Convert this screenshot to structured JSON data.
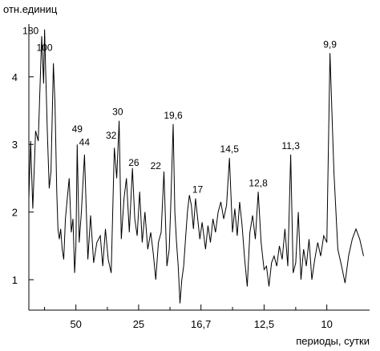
{
  "chart_data": {
    "type": "line",
    "ylabel": "отн.единиц",
    "xlabel": "периоды, сутки",
    "x_scale": "reciprocal",
    "xlim": [
      200,
      8.8
    ],
    "ylim": [
      0.55,
      4.78
    ],
    "grid": false,
    "series_color": "#000000",
    "y_ticks": [
      {
        "value": 1,
        "label": "1"
      },
      {
        "value": 2,
        "label": "2"
      },
      {
        "value": 3,
        "label": "3"
      },
      {
        "value": 4,
        "label": "4"
      }
    ],
    "x_ticks": [
      {
        "value": 50,
        "label": "50"
      },
      {
        "value": 25,
        "label": "25"
      },
      {
        "value": 16.7,
        "label": "16,7"
      },
      {
        "value": 12.5,
        "label": "12,5"
      },
      {
        "value": 10,
        "label": "10"
      }
    ],
    "x_minor_ticks": [
      100,
      33.3,
      20,
      14.3,
      11.1
    ],
    "peak_labels": [
      {
        "period": 180,
        "y": 4.55,
        "label": "180"
      },
      {
        "period": 100,
        "y": 4.3,
        "label": "100"
      },
      {
        "period": 49,
        "y": 3.1,
        "label": "49"
      },
      {
        "period": 44,
        "y": 2.9,
        "label": "44"
      },
      {
        "period": 32,
        "y": 3.0,
        "label": "32"
      },
      {
        "period": 30,
        "y": 3.35,
        "label": "30"
      },
      {
        "period": 26,
        "y": 2.6,
        "label": "26"
      },
      {
        "period": 22,
        "y": 2.55,
        "label": "22"
      },
      {
        "period": 19.6,
        "y": 3.3,
        "label": "19,6"
      },
      {
        "period": 17,
        "y": 2.2,
        "label": "17"
      },
      {
        "period": 14.5,
        "y": 2.8,
        "label": "14,5"
      },
      {
        "period": 12.8,
        "y": 2.3,
        "label": "12,8"
      },
      {
        "period": 11.3,
        "y": 2.85,
        "label": "11,3"
      },
      {
        "period": 9.9,
        "y": 4.35,
        "label": "9,9"
      }
    ],
    "series": [
      {
        "name": "",
        "points": [
          [
            200,
            2.2
          ],
          [
            180,
            3.05
          ],
          [
            160,
            2.05
          ],
          [
            140,
            3.2
          ],
          [
            125,
            3.05
          ],
          [
            110,
            4.6
          ],
          [
            103,
            3.9
          ],
          [
            100,
            4.7
          ],
          [
            92,
            3.2
          ],
          [
            87,
            2.35
          ],
          [
            83,
            2.6
          ],
          [
            78,
            4.2
          ],
          [
            75,
            3.6
          ],
          [
            72,
            2.3
          ],
          [
            70,
            1.75
          ],
          [
            68,
            1.6
          ],
          [
            66,
            1.75
          ],
          [
            64,
            1.45
          ],
          [
            62,
            1.3
          ],
          [
            60,
            1.9
          ],
          [
            58,
            2.2
          ],
          [
            56,
            2.5
          ],
          [
            54,
            1.7
          ],
          [
            52.5,
            1.9
          ],
          [
            51,
            1.1
          ],
          [
            50,
            1.5
          ],
          [
            49,
            3.0
          ],
          [
            47.5,
            1.55
          ],
          [
            46,
            2.0
          ],
          [
            44,
            2.85
          ],
          [
            42,
            1.3
          ],
          [
            40.5,
            1.95
          ],
          [
            39,
            1.25
          ],
          [
            37.5,
            1.55
          ],
          [
            36,
            1.65
          ],
          [
            35,
            1.2
          ],
          [
            34,
            1.75
          ],
          [
            33,
            1.3
          ],
          [
            32,
            1.1
          ],
          [
            31,
            2.95
          ],
          [
            30.3,
            2.5
          ],
          [
            29.6,
            3.35
          ],
          [
            29,
            1.6
          ],
          [
            28.3,
            2.2
          ],
          [
            27.7,
            2.5
          ],
          [
            27,
            1.7
          ],
          [
            26.3,
            2.65
          ],
          [
            25.8,
            1.9
          ],
          [
            25.3,
            1.65
          ],
          [
            24.8,
            2.3
          ],
          [
            24.3,
            1.55
          ],
          [
            23.8,
            2.0
          ],
          [
            23.3,
            1.45
          ],
          [
            22.8,
            1.7
          ],
          [
            22.4,
            1.4
          ],
          [
            22,
            1.0
          ],
          [
            21.6,
            1.55
          ],
          [
            21.2,
            1.7
          ],
          [
            20.8,
            2.6
          ],
          [
            20.4,
            1.2
          ],
          [
            20.1,
            1.45
          ],
          [
            19.9,
            2.1
          ],
          [
            19.6,
            3.3
          ],
          [
            19.4,
            2.0
          ],
          [
            19.2,
            1.55
          ],
          [
            19.0,
            1.2
          ],
          [
            18.8,
            0.65
          ],
          [
            18.6,
            1.0
          ],
          [
            18.4,
            1.2
          ],
          [
            18.2,
            1.6
          ],
          [
            18.0,
            2.0
          ],
          [
            17.8,
            2.25
          ],
          [
            17.6,
            2.1
          ],
          [
            17.4,
            1.75
          ],
          [
            17.2,
            2.2
          ],
          [
            17.0,
            1.9
          ],
          [
            16.8,
            1.6
          ],
          [
            16.6,
            1.85
          ],
          [
            16.3,
            1.45
          ],
          [
            16.1,
            1.8
          ],
          [
            15.9,
            1.55
          ],
          [
            15.7,
            1.9
          ],
          [
            15.5,
            1.7
          ],
          [
            15.3,
            2.0
          ],
          [
            15.1,
            2.15
          ],
          [
            14.9,
            1.9
          ],
          [
            14.7,
            2.1
          ],
          [
            14.5,
            2.8
          ],
          [
            14.3,
            1.7
          ],
          [
            14.15,
            2.05
          ],
          [
            14.0,
            1.65
          ],
          [
            13.85,
            2.15
          ],
          [
            13.7,
            1.8
          ],
          [
            13.55,
            1.3
          ],
          [
            13.4,
            0.9
          ],
          [
            13.25,
            1.7
          ],
          [
            13.1,
            1.95
          ],
          [
            12.95,
            1.6
          ],
          [
            12.8,
            2.3
          ],
          [
            12.65,
            1.55
          ],
          [
            12.5,
            1.15
          ],
          [
            12.38,
            1.2
          ],
          [
            12.26,
            0.9
          ],
          [
            12.14,
            1.25
          ],
          [
            12.02,
            1.35
          ],
          [
            11.9,
            1.2
          ],
          [
            11.78,
            1.5
          ],
          [
            11.66,
            1.3
          ],
          [
            11.54,
            1.75
          ],
          [
            11.42,
            1.2
          ],
          [
            11.3,
            2.85
          ],
          [
            11.2,
            1.1
          ],
          [
            11.1,
            1.25
          ],
          [
            11.0,
            2.0
          ],
          [
            10.9,
            1.0
          ],
          [
            10.8,
            1.45
          ],
          [
            10.7,
            1.2
          ],
          [
            10.6,
            1.6
          ],
          [
            10.5,
            1.0
          ],
          [
            10.4,
            1.3
          ],
          [
            10.3,
            1.55
          ],
          [
            10.2,
            1.35
          ],
          [
            10.1,
            1.65
          ],
          [
            10.0,
            1.55
          ],
          [
            9.9,
            4.35
          ],
          [
            9.78,
            2.6
          ],
          [
            9.66,
            1.45
          ],
          [
            9.55,
            1.2
          ],
          [
            9.45,
            0.95
          ],
          [
            9.35,
            1.35
          ],
          [
            9.25,
            1.6
          ],
          [
            9.15,
            1.75
          ],
          [
            9.05,
            1.6
          ],
          [
            8.95,
            1.35
          ]
        ]
      }
    ]
  }
}
